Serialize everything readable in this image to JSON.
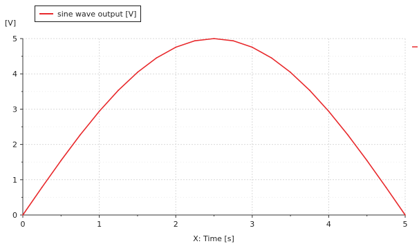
{
  "chart_data": {
    "type": "line",
    "title": "",
    "xlabel": "X: Time [s]",
    "ylabel": "[V]",
    "xlim": [
      0,
      5
    ],
    "ylim": [
      0,
      5
    ],
    "x_ticks": [
      "0",
      "1",
      "2",
      "3",
      "4",
      "5"
    ],
    "y_ticks": [
      "0",
      "1",
      "2",
      "3",
      "4",
      "5"
    ],
    "grid": true,
    "legend_position": "top-left",
    "series": [
      {
        "name": "sine wave output [V]",
        "color": "#e8282b",
        "x": [
          0,
          0.25,
          0.5,
          0.75,
          1.0,
          1.25,
          1.5,
          1.75,
          2.0,
          2.25,
          2.5,
          2.75,
          3.0,
          3.25,
          3.5,
          3.75,
          4.0,
          4.25,
          4.5,
          4.75,
          5.0
        ],
        "y": [
          0,
          0.782,
          1.545,
          2.27,
          2.939,
          3.536,
          4.045,
          4.455,
          4.755,
          4.938,
          5.0,
          4.938,
          4.755,
          4.455,
          4.045,
          3.536,
          2.939,
          2.27,
          1.545,
          0.782,
          0
        ]
      }
    ]
  }
}
